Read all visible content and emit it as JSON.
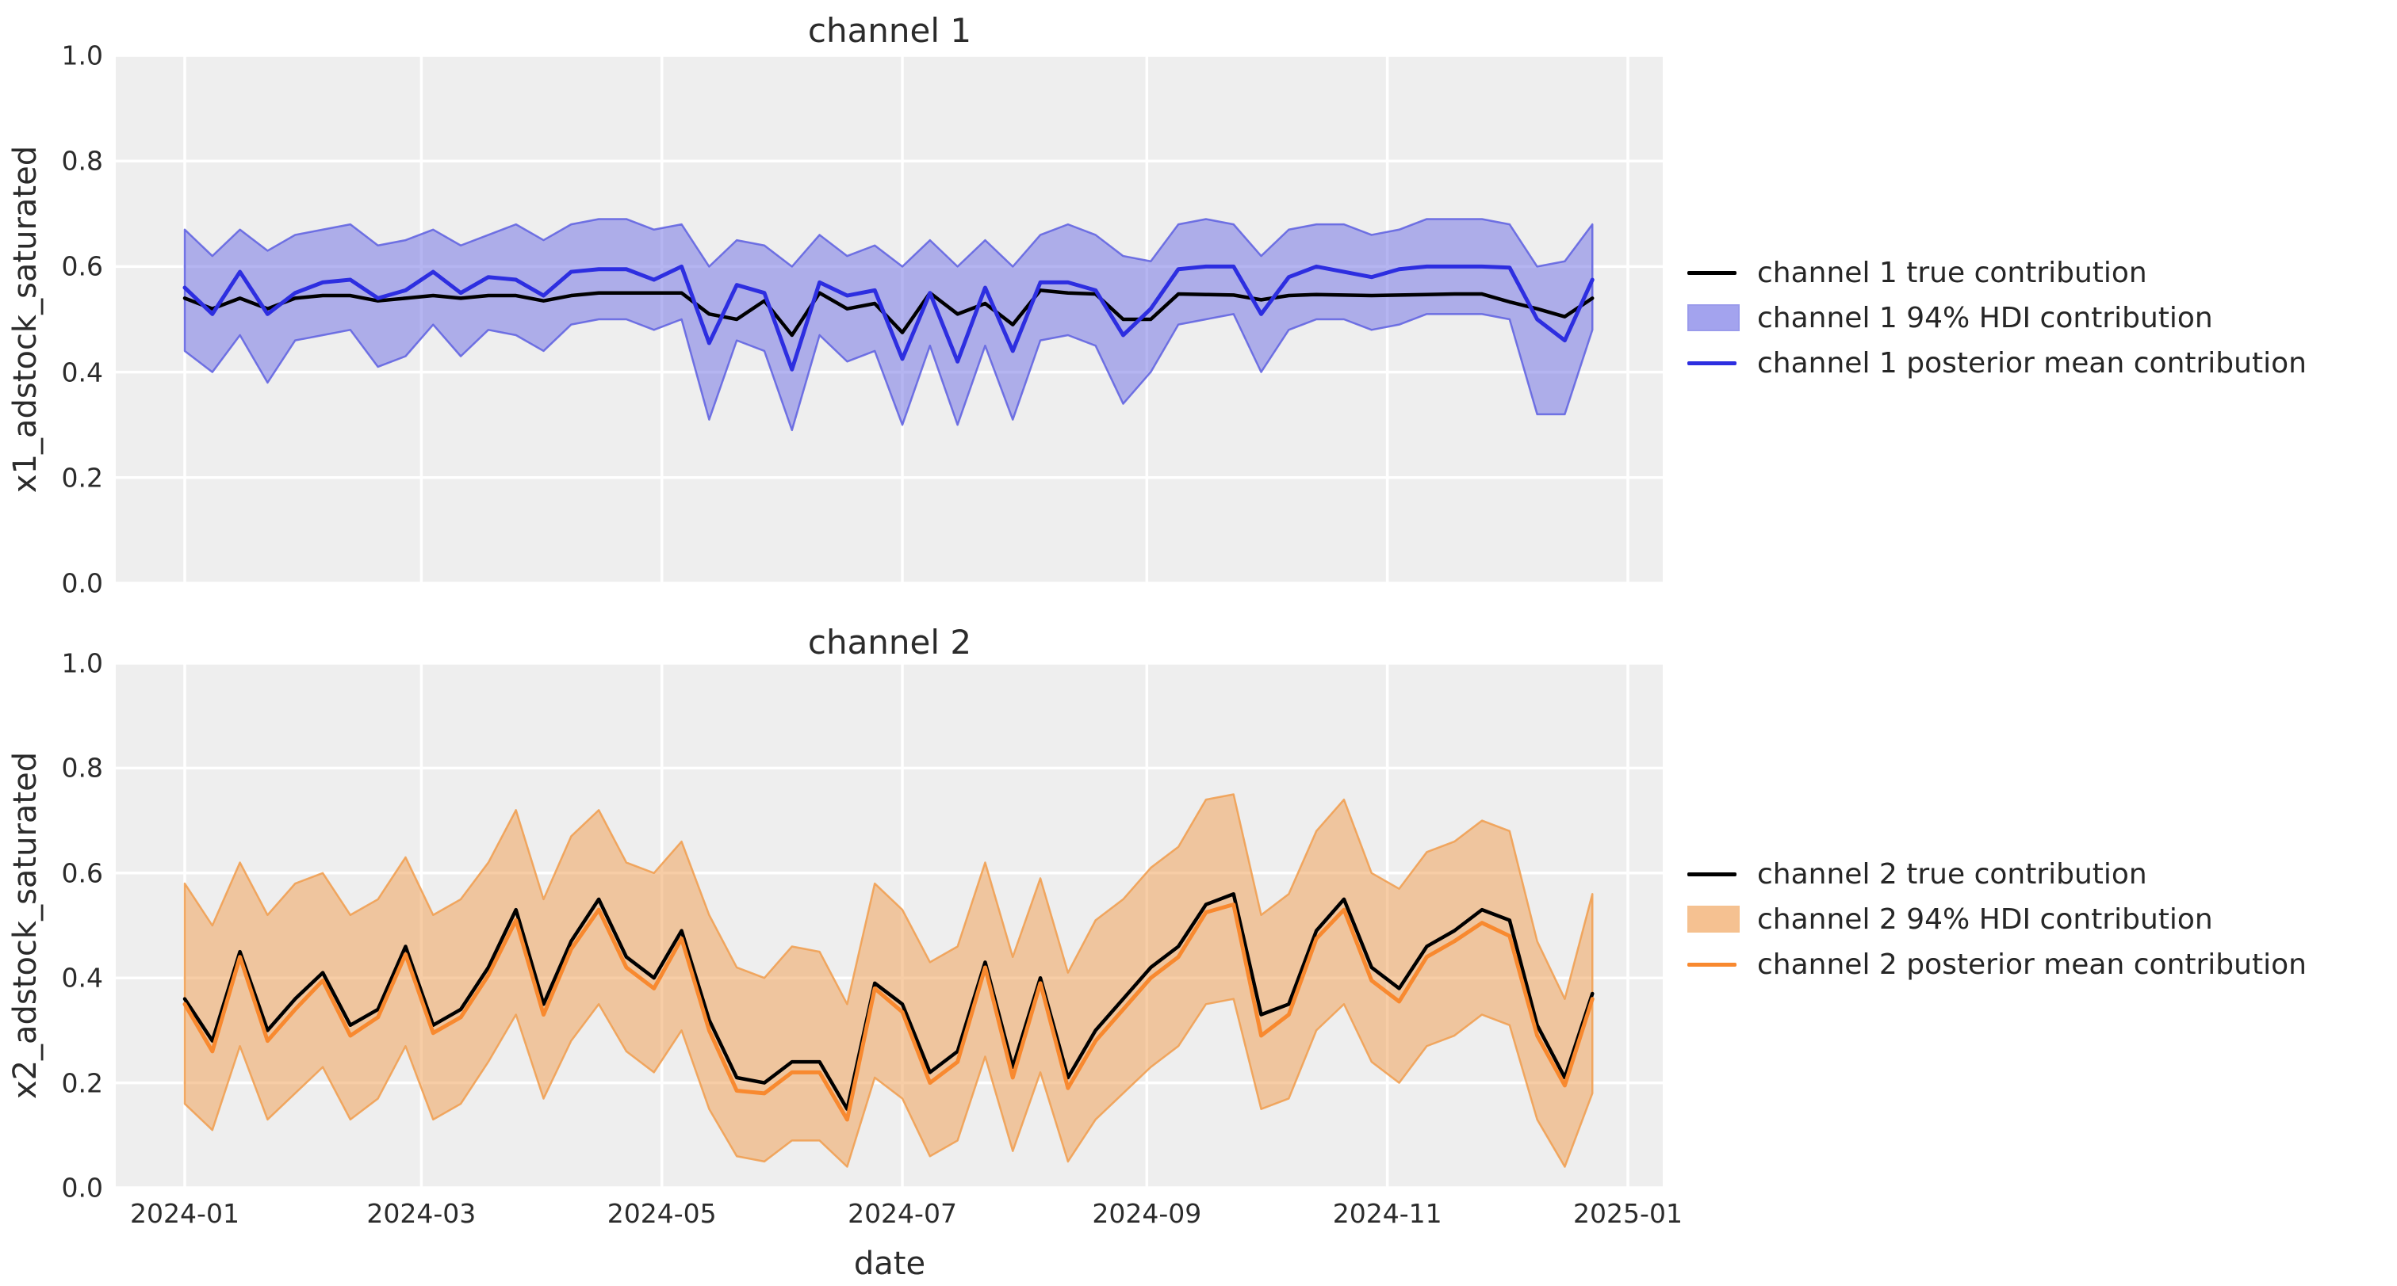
{
  "figure": {
    "background": "#ffffff",
    "axes_background": "#eeeeee",
    "grid_color": "#ffffff",
    "xlabel": "date"
  },
  "chart_data": [
    {
      "type": "line",
      "title": "channel 1",
      "xlabel": "date",
      "ylabel": "x1_adstock_saturated",
      "ylim": [
        0.0,
        1.0
      ],
      "xlim_days": [
        -18,
        375
      ],
      "grid": true,
      "legend_position": "right-outside",
      "x_start_date": "2024-01-01",
      "x_days": [
        0,
        7,
        14,
        21,
        28,
        35,
        42,
        49,
        56,
        63,
        70,
        77,
        84,
        91,
        98,
        105,
        112,
        119,
        126,
        133,
        140,
        147,
        154,
        161,
        168,
        175,
        182,
        189,
        196,
        203,
        210,
        217,
        224,
        231,
        238,
        245,
        252,
        259,
        266,
        273,
        280,
        287,
        294,
        301,
        308,
        315,
        322,
        329,
        336,
        343,
        350,
        357
      ],
      "x_tick_days": [
        0,
        60,
        121,
        182,
        244,
        305,
        366
      ],
      "x_tick_labels": [
        "2024-01",
        "2024-03",
        "2024-05",
        "2024-07",
        "2024-09",
        "2024-11",
        "2025-01"
      ],
      "y_ticks": [
        0.0,
        0.2,
        0.4,
        0.6,
        0.8,
        1.0
      ],
      "y_tick_labels": [
        "0.0",
        "0.2",
        "0.4",
        "0.6",
        "0.8",
        "1.0"
      ],
      "colors": {
        "true_line": "#000000",
        "mean_line": "#2d2ee0",
        "band_fill": "#6b6be4",
        "band_edge": "#5d5fe0",
        "band_fill_opacity": 0.5
      },
      "legend": [
        {
          "label": "channel 1 true contribution",
          "swatch": "line",
          "series": "true"
        },
        {
          "label": "channel 1 94% HDI contribution",
          "swatch": "patch",
          "series": "band"
        },
        {
          "label": "channel 1 posterior mean contribution",
          "swatch": "line",
          "series": "mean"
        }
      ],
      "series": [
        {
          "name": "channel 1 true contribution",
          "style": "line",
          "values": [
            0.54,
            0.52,
            0.54,
            0.52,
            0.54,
            0.545,
            0.545,
            0.535,
            0.54,
            0.545,
            0.54,
            0.545,
            0.545,
            0.535,
            0.545,
            0.55,
            0.55,
            0.55,
            0.55,
            0.51,
            0.5,
            0.535,
            0.47,
            0.55,
            0.52,
            0.53,
            0.475,
            0.55,
            0.51,
            0.53,
            0.49,
            0.555,
            0.55,
            0.548,
            0.5,
            0.5,
            0.548,
            0.547,
            0.546,
            0.537,
            0.545,
            0.547,
            0.546,
            0.545,
            0.546,
            0.547,
            0.548,
            0.548,
            0.533,
            0.52,
            0.505,
            0.54
          ]
        },
        {
          "name": "channel 1 posterior mean contribution",
          "style": "line",
          "values": [
            0.56,
            0.51,
            0.59,
            0.51,
            0.55,
            0.57,
            0.575,
            0.54,
            0.555,
            0.59,
            0.55,
            0.58,
            0.575,
            0.545,
            0.59,
            0.595,
            0.595,
            0.575,
            0.6,
            0.455,
            0.565,
            0.55,
            0.405,
            0.57,
            0.545,
            0.555,
            0.425,
            0.55,
            0.42,
            0.56,
            0.44,
            0.57,
            0.57,
            0.555,
            0.47,
            0.52,
            0.595,
            0.6,
            0.6,
            0.51,
            0.58,
            0.6,
            0.59,
            0.58,
            0.595,
            0.6,
            0.6,
            0.6,
            0.598,
            0.5,
            0.46,
            0.575
          ]
        },
        {
          "name": "channel 1 94% HDI contribution",
          "style": "band",
          "upper": [
            0.67,
            0.62,
            0.67,
            0.63,
            0.66,
            0.67,
            0.68,
            0.64,
            0.65,
            0.67,
            0.64,
            0.66,
            0.68,
            0.65,
            0.68,
            0.69,
            0.69,
            0.67,
            0.68,
            0.6,
            0.65,
            0.64,
            0.6,
            0.66,
            0.62,
            0.64,
            0.6,
            0.65,
            0.6,
            0.65,
            0.6,
            0.66,
            0.68,
            0.66,
            0.62,
            0.61,
            0.68,
            0.69,
            0.68,
            0.62,
            0.67,
            0.68,
            0.68,
            0.66,
            0.67,
            0.69,
            0.69,
            0.69,
            0.68,
            0.6,
            0.61,
            0.68
          ],
          "lower": [
            0.44,
            0.4,
            0.47,
            0.38,
            0.46,
            0.47,
            0.48,
            0.41,
            0.43,
            0.49,
            0.43,
            0.48,
            0.47,
            0.44,
            0.49,
            0.5,
            0.5,
            0.48,
            0.5,
            0.31,
            0.46,
            0.44,
            0.29,
            0.47,
            0.42,
            0.44,
            0.3,
            0.45,
            0.3,
            0.45,
            0.31,
            0.46,
            0.47,
            0.45,
            0.34,
            0.4,
            0.49,
            0.5,
            0.51,
            0.4,
            0.48,
            0.5,
            0.5,
            0.48,
            0.49,
            0.51,
            0.51,
            0.51,
            0.5,
            0.32,
            0.32,
            0.48
          ]
        }
      ]
    },
    {
      "type": "line",
      "title": "channel 2",
      "xlabel": "date",
      "ylabel": "x2_adstock_saturated",
      "ylim": [
        0.0,
        1.0
      ],
      "xlim_days": [
        -18,
        375
      ],
      "grid": true,
      "legend_position": "right-outside",
      "x_start_date": "2024-01-01",
      "x_days": [
        0,
        7,
        14,
        21,
        28,
        35,
        42,
        49,
        56,
        63,
        70,
        77,
        84,
        91,
        98,
        105,
        112,
        119,
        126,
        133,
        140,
        147,
        154,
        161,
        168,
        175,
        182,
        189,
        196,
        203,
        210,
        217,
        224,
        231,
        238,
        245,
        252,
        259,
        266,
        273,
        280,
        287,
        294,
        301,
        308,
        315,
        322,
        329,
        336,
        343,
        350,
        357
      ],
      "x_tick_days": [
        0,
        60,
        121,
        182,
        244,
        305,
        366
      ],
      "x_tick_labels": [
        "2024-01",
        "2024-03",
        "2024-05",
        "2024-07",
        "2024-09",
        "2024-11",
        "2025-01"
      ],
      "y_ticks": [
        0.0,
        0.2,
        0.4,
        0.6,
        0.8,
        1.0
      ],
      "y_tick_labels": [
        "0.0",
        "0.2",
        "0.4",
        "0.6",
        "0.8",
        "1.0"
      ],
      "colors": {
        "true_line": "#000000",
        "mean_line": "#f8892f",
        "band_fill": "#ef9c4e",
        "band_edge": "#f09c4c",
        "band_fill_opacity": 0.5
      },
      "legend": [
        {
          "label": "channel 2 true contribution",
          "swatch": "line",
          "series": "true"
        },
        {
          "label": "channel 2 94% HDI contribution",
          "swatch": "patch",
          "series": "band"
        },
        {
          "label": "channel 2 posterior mean contribution",
          "swatch": "line",
          "series": "mean"
        }
      ],
      "series": [
        {
          "name": "channel 2 true contribution",
          "style": "line",
          "values": [
            0.36,
            0.28,
            0.45,
            0.3,
            0.36,
            0.41,
            0.31,
            0.34,
            0.46,
            0.31,
            0.34,
            0.42,
            0.53,
            0.35,
            0.47,
            0.55,
            0.44,
            0.4,
            0.49,
            0.32,
            0.21,
            0.2,
            0.24,
            0.24,
            0.15,
            0.39,
            0.35,
            0.22,
            0.26,
            0.43,
            0.23,
            0.4,
            0.21,
            0.3,
            0.36,
            0.42,
            0.46,
            0.54,
            0.56,
            0.33,
            0.35,
            0.49,
            0.55,
            0.42,
            0.38,
            0.46,
            0.49,
            0.53,
            0.51,
            0.31,
            0.21,
            0.37
          ]
        },
        {
          "name": "channel 2 posterior mean contribution",
          "style": "line",
          "values": [
            0.35,
            0.26,
            0.44,
            0.28,
            0.34,
            0.395,
            0.29,
            0.325,
            0.445,
            0.295,
            0.325,
            0.405,
            0.51,
            0.33,
            0.455,
            0.53,
            0.42,
            0.38,
            0.475,
            0.3,
            0.185,
            0.18,
            0.22,
            0.22,
            0.13,
            0.38,
            0.335,
            0.2,
            0.24,
            0.42,
            0.21,
            0.39,
            0.19,
            0.28,
            0.34,
            0.4,
            0.44,
            0.525,
            0.54,
            0.29,
            0.33,
            0.475,
            0.53,
            0.395,
            0.355,
            0.44,
            0.47,
            0.505,
            0.48,
            0.29,
            0.195,
            0.36
          ]
        },
        {
          "name": "channel 2 94% HDI contribution",
          "style": "band",
          "upper": [
            0.58,
            0.5,
            0.62,
            0.52,
            0.58,
            0.6,
            0.52,
            0.55,
            0.63,
            0.52,
            0.55,
            0.62,
            0.72,
            0.55,
            0.67,
            0.72,
            0.62,
            0.6,
            0.66,
            0.52,
            0.42,
            0.4,
            0.46,
            0.45,
            0.35,
            0.58,
            0.53,
            0.43,
            0.46,
            0.62,
            0.44,
            0.59,
            0.41,
            0.51,
            0.55,
            0.61,
            0.65,
            0.74,
            0.75,
            0.52,
            0.56,
            0.68,
            0.74,
            0.6,
            0.57,
            0.64,
            0.66,
            0.7,
            0.68,
            0.47,
            0.36,
            0.56
          ],
          "lower": [
            0.16,
            0.11,
            0.27,
            0.13,
            0.18,
            0.23,
            0.13,
            0.17,
            0.27,
            0.13,
            0.16,
            0.24,
            0.33,
            0.17,
            0.28,
            0.35,
            0.26,
            0.22,
            0.3,
            0.15,
            0.06,
            0.05,
            0.09,
            0.09,
            0.04,
            0.21,
            0.17,
            0.06,
            0.09,
            0.25,
            0.07,
            0.22,
            0.05,
            0.13,
            0.18,
            0.23,
            0.27,
            0.35,
            0.36,
            0.15,
            0.17,
            0.3,
            0.35,
            0.24,
            0.2,
            0.27,
            0.29,
            0.33,
            0.31,
            0.13,
            0.04,
            0.18
          ]
        }
      ]
    }
  ],
  "layout_note": "two stacked subplots sharing x axis, legends outside right"
}
